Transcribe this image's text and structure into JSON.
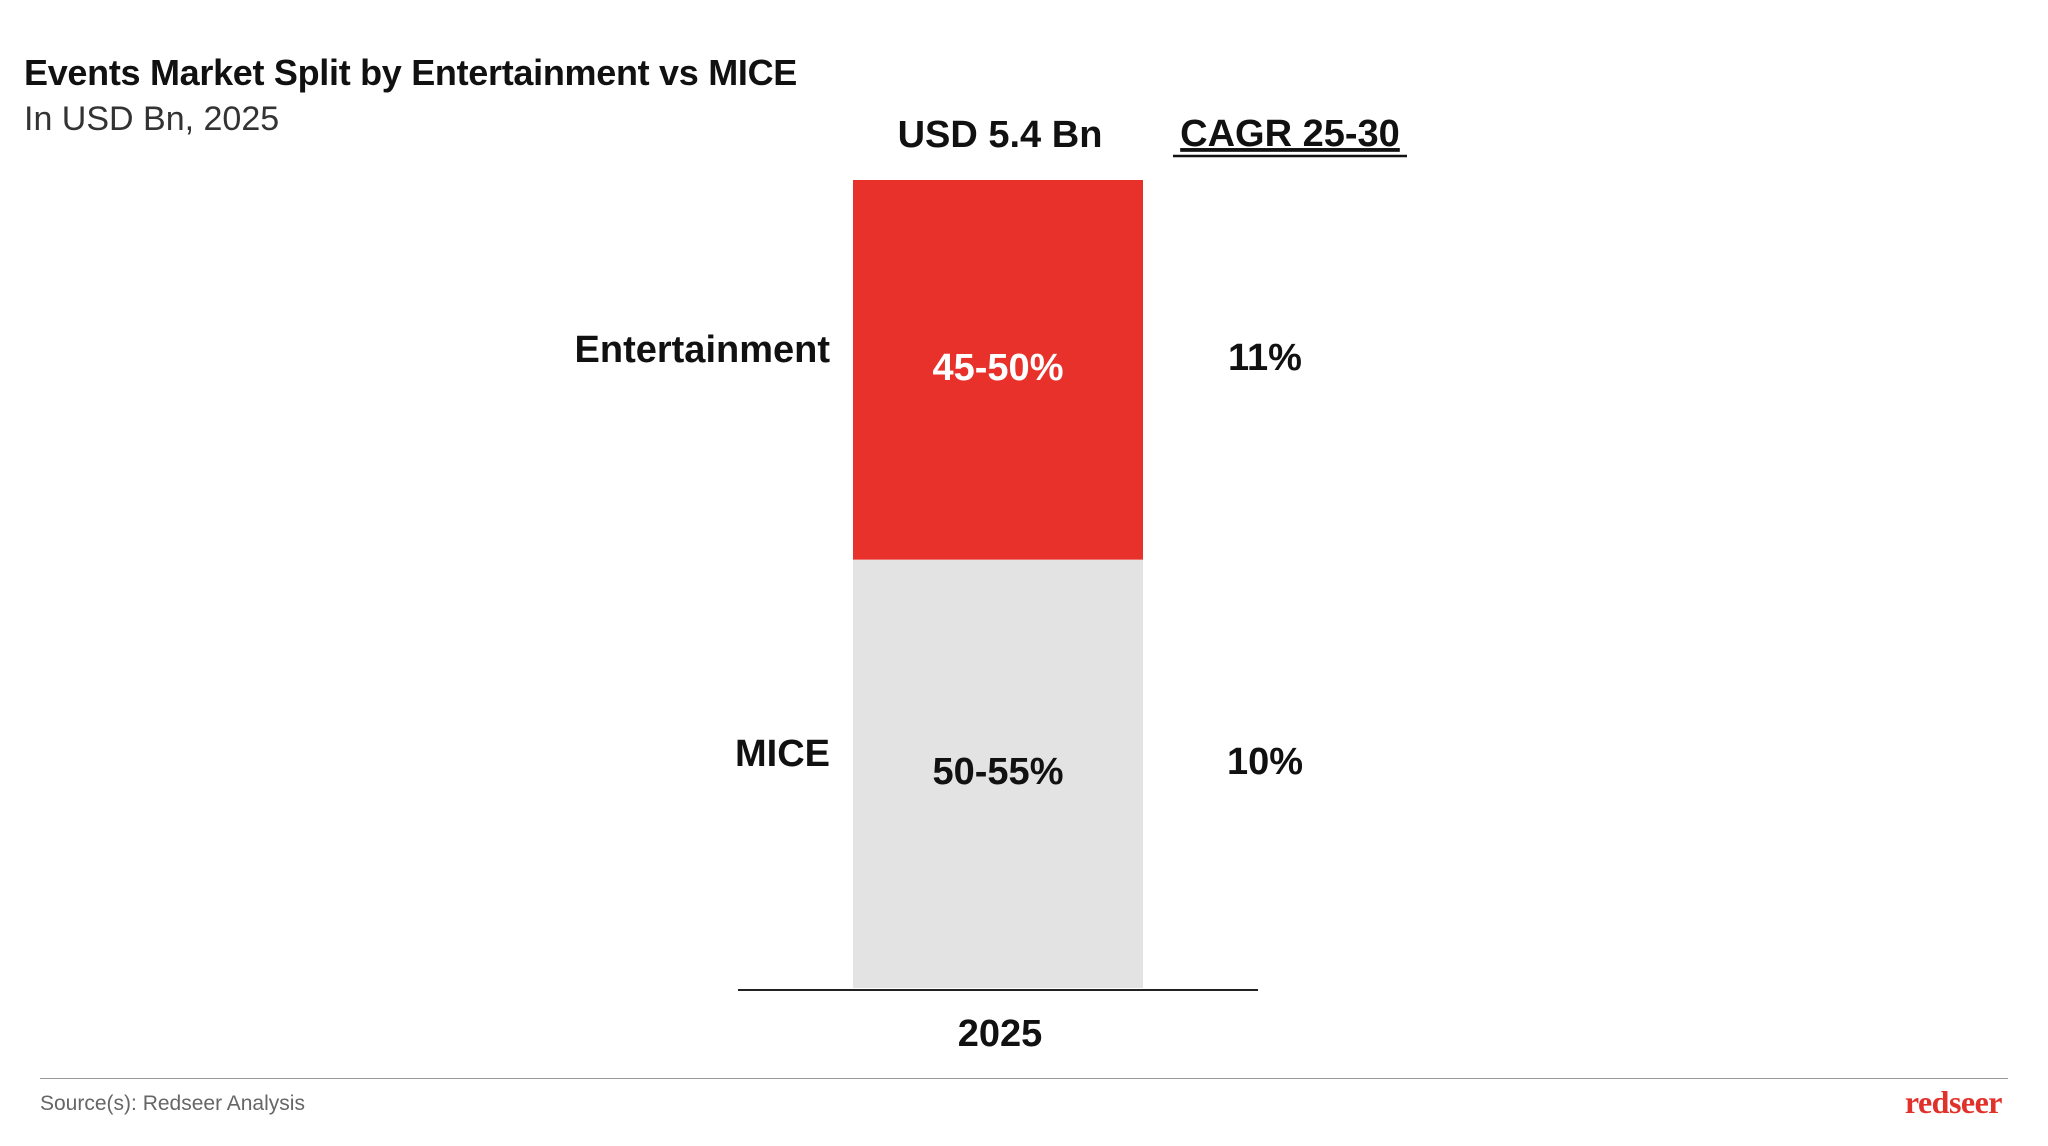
{
  "header": {
    "title": "Events Market Split by Entertainment vs MICE",
    "subtitle": "In USD Bn, 2025"
  },
  "chart_data": {
    "type": "bar",
    "stacked": true,
    "categories": [
      "2025"
    ],
    "total_label": "USD 5.4 Bn",
    "cagr_header": "CAGR 25-30",
    "series": [
      {
        "name": "Entertainment",
        "share_label": "45-50%",
        "share_value": 47,
        "cagr": "11%",
        "color": "#e8312b",
        "text_color": "#ffffff"
      },
      {
        "name": "MICE",
        "share_label": "50-55%",
        "share_value": 53,
        "cagr": "10%",
        "color": "#e3e3e3",
        "text_color": "#111111"
      }
    ],
    "ylim": [
      0,
      100
    ],
    "xlabel": "",
    "ylabel": ""
  },
  "footer": {
    "source": "Source(s): Redseer Analysis",
    "brand": "redseer"
  }
}
